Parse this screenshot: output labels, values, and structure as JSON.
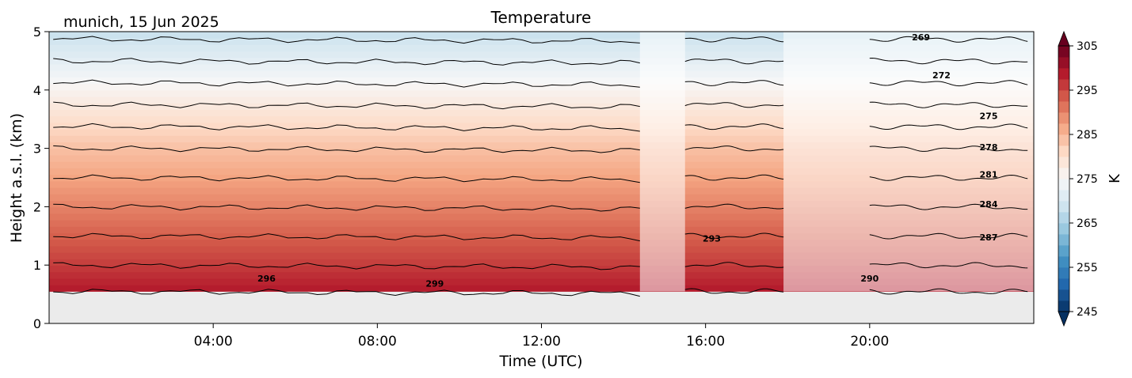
{
  "chart_data": {
    "type": "heatmap",
    "title": "Temperature",
    "subtitle": "munich, 15 Jun 2025",
    "xlabel": "Time (UTC)",
    "ylabel": "Height a.s.l. (km)",
    "xlim_hours": [
      0,
      24
    ],
    "ylim": [
      0,
      5
    ],
    "x_ticks": [
      4,
      8,
      12,
      16,
      20
    ],
    "x_tick_labels": [
      "04:00",
      "08:00",
      "12:00",
      "16:00",
      "20:00"
    ],
    "y_ticks": [
      0,
      1,
      2,
      3,
      4,
      5
    ],
    "y_tick_labels": [
      "0",
      "1",
      "2",
      "3",
      "4",
      "5"
    ],
    "data_bottom_km": 0.55,
    "colorbar": {
      "label": "K",
      "range": [
        245,
        305
      ],
      "ticks": [
        245,
        255,
        265,
        275,
        285,
        295,
        305
      ],
      "tick_labels": [
        "245",
        "255",
        "265",
        "275",
        "285",
        "295",
        "305"
      ],
      "colormap": "RdBu_r",
      "extend": "both"
    },
    "temperature_profile": {
      "heights_km": [
        0.55,
        1.0,
        1.5,
        2.0,
        2.5,
        3.0,
        3.5,
        4.0,
        4.5,
        5.0
      ],
      "values_K": [
        299,
        296,
        293,
        290,
        287,
        284,
        280,
        276,
        272,
        268
      ]
    },
    "gaps_hours": [
      [
        14.4,
        15.5
      ],
      [
        17.9,
        18.1
      ]
    ],
    "faded_hours": [
      [
        14.4,
        15.5
      ],
      [
        17.9,
        24.0
      ]
    ],
    "contour_levels": [
      269,
      272,
      275,
      278,
      281,
      284,
      287,
      290,
      293,
      296,
      299
    ],
    "contour_labels": [
      {
        "text": "296",
        "x": 5.3,
        "y": 0.72
      },
      {
        "text": "299",
        "x": 9.4,
        "y": 0.63
      },
      {
        "text": "293",
        "x": 16.15,
        "y": 1.4
      },
      {
        "text": "290",
        "x": 20.0,
        "y": 0.72
      },
      {
        "text": "269",
        "x": 21.25,
        "y": 4.85
      },
      {
        "text": "272",
        "x": 21.75,
        "y": 4.2
      },
      {
        "text": "275",
        "x": 22.9,
        "y": 3.5
      },
      {
        "text": "278",
        "x": 22.9,
        "y": 2.97
      },
      {
        "text": "281",
        "x": 22.9,
        "y": 2.5
      },
      {
        "text": "284",
        "x": 22.9,
        "y": 1.99
      },
      {
        "text": "287",
        "x": 22.9,
        "y": 1.42
      }
    ]
  },
  "colors": {
    "no_data": "#ebebeb",
    "contour": "#000000",
    "axis": "#000000"
  }
}
